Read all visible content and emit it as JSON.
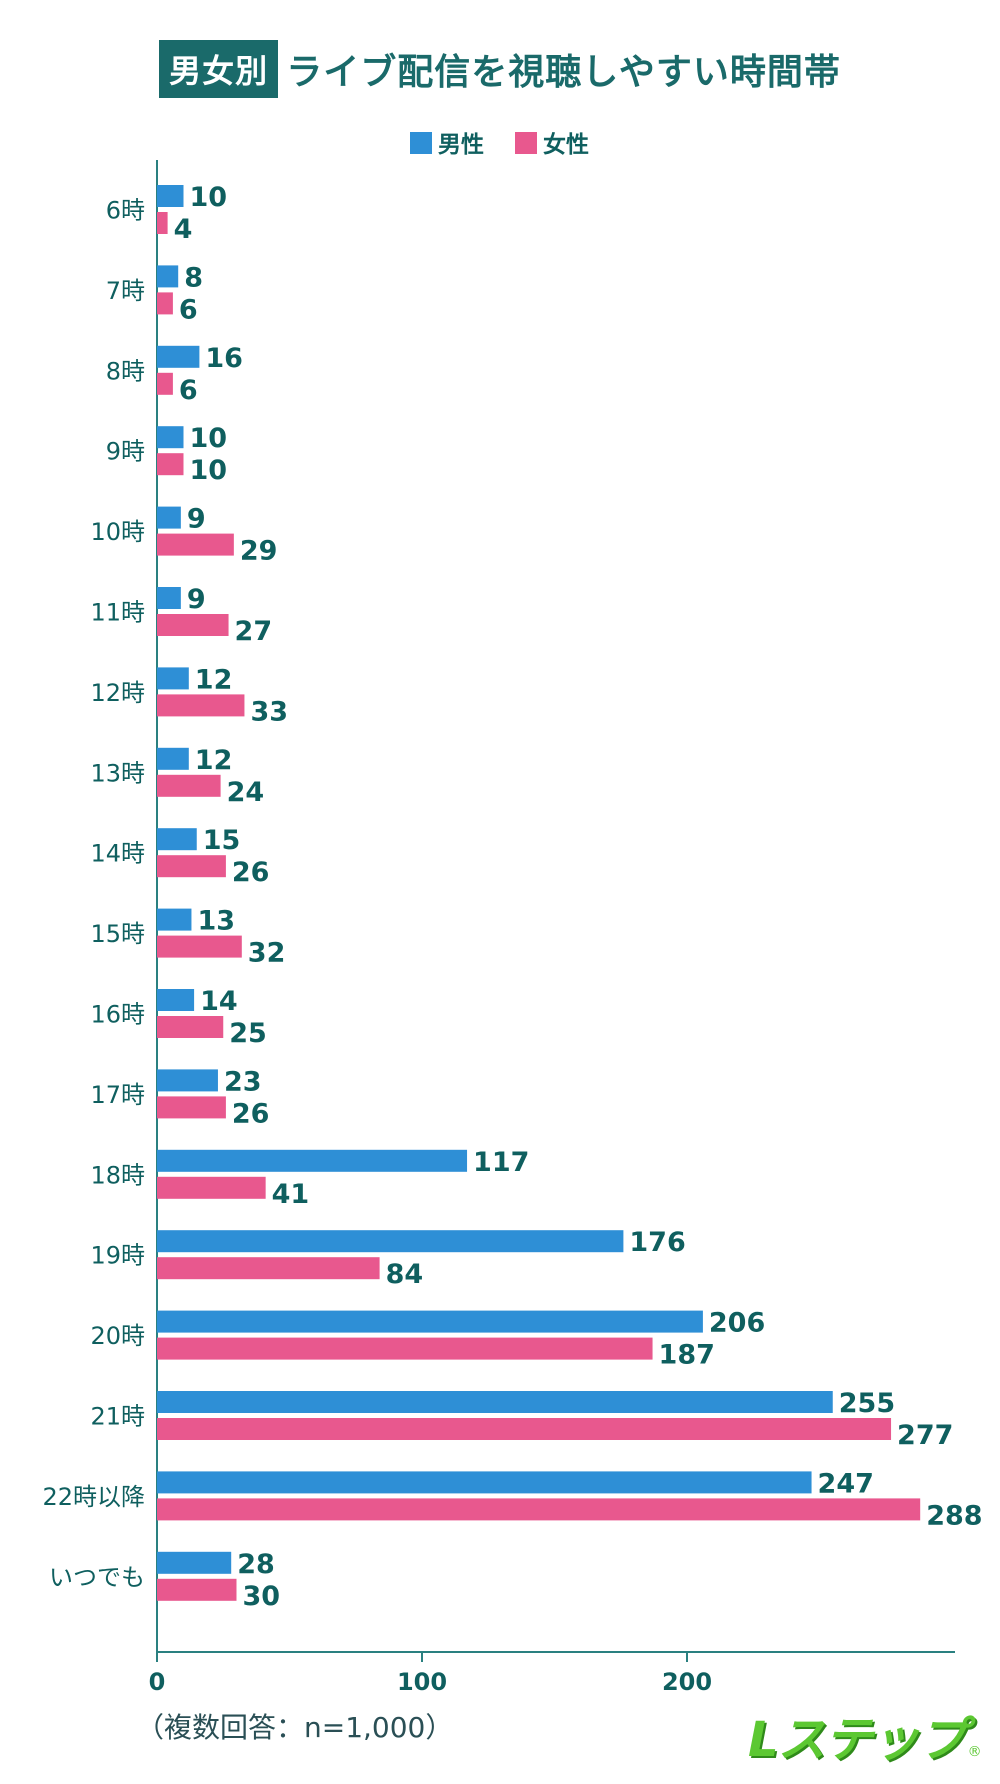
{
  "header": {
    "badge": "男女別",
    "title": "ライブ配信を視聴しやすい時間帯"
  },
  "footnote": "（複数回答：n=1,000）",
  "logo": {
    "text": "Lステップ",
    "mark": "®"
  },
  "colors": {
    "male": "#2e8fd6",
    "female": "#e8588e",
    "label": "#0f5f5f",
    "axis": "#2a8080"
  },
  "chart_data": {
    "type": "bar",
    "orientation": "horizontal",
    "categories": [
      "6時",
      "7時",
      "8時",
      "9時",
      "10時",
      "11時",
      "12時",
      "13時",
      "14時",
      "15時",
      "16時",
      "17時",
      "18時",
      "19時",
      "20時",
      "21時",
      "22時以降",
      "いつでも"
    ],
    "series": [
      {
        "name": "男性",
        "values": [
          10,
          8,
          16,
          10,
          9,
          9,
          12,
          12,
          15,
          13,
          14,
          23,
          117,
          176,
          206,
          255,
          247,
          28
        ]
      },
      {
        "name": "女性",
        "values": [
          4,
          6,
          6,
          10,
          29,
          27,
          33,
          24,
          26,
          32,
          25,
          26,
          41,
          84,
          187,
          277,
          288,
          30
        ]
      }
    ],
    "xticks": [
      0,
      100,
      200
    ],
    "xlim": [
      0,
      300
    ],
    "legend": "top-center",
    "grid": false
  }
}
